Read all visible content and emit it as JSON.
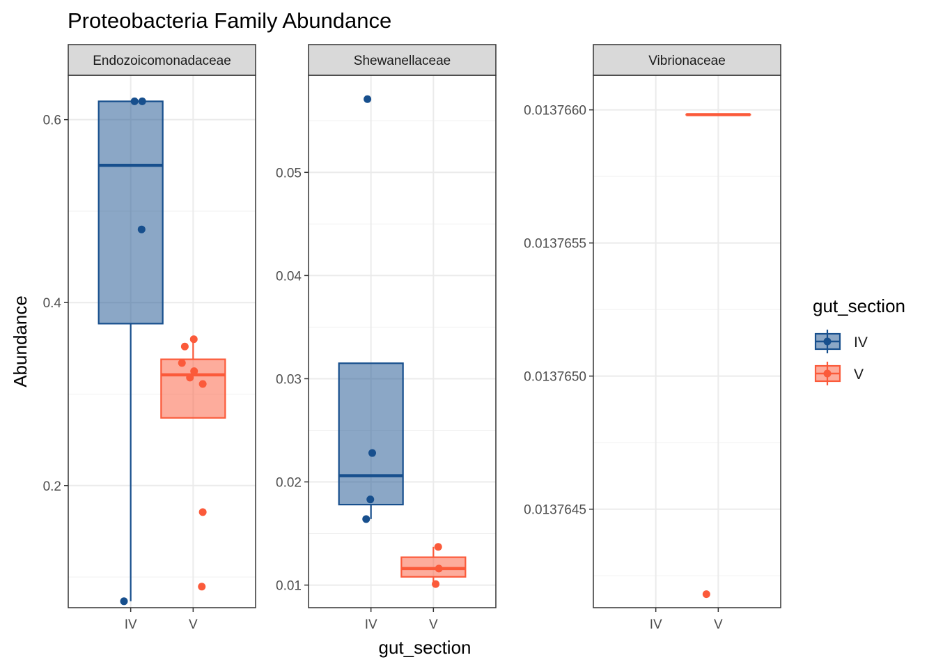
{
  "chart_data": {
    "type": "boxplot",
    "title": "Proteobacteria Family Abundance",
    "xlabel": "gut_section",
    "ylabel": "Abundance",
    "categories": [
      "IV",
      "V"
    ],
    "colors": {
      "IV": "#174f8d",
      "V": "#fb5a3a"
    },
    "grid": true,
    "legend": {
      "title": "gut_section",
      "position": "right",
      "entries": [
        {
          "label": "IV",
          "key": "IV"
        },
        {
          "label": "V",
          "key": "V"
        }
      ]
    },
    "panels": [
      {
        "label": "Endozoicomonadaceae",
        "ylim": [
          0.0665,
          0.6485
        ],
        "yticks": [
          {
            "value": 0.2,
            "label": "0.2"
          },
          {
            "value": 0.4,
            "label": "0.4"
          },
          {
            "value": 0.6,
            "label": "0.6"
          }
        ],
        "groups": [
          {
            "category": "IV",
            "box": {
              "whisker_low": 0.0735,
              "q1": 0.377,
              "median": 0.55,
              "q3": 0.62,
              "whisker_high": 0.62
            },
            "points": [
              {
                "xj": -0.21,
                "y": 0.0735
              },
              {
                "xj": 0.12,
                "y": 0.62
              },
              {
                "xj": 0.36,
                "y": 0.62
              },
              {
                "xj": 0.34,
                "y": 0.48
              }
            ]
          },
          {
            "category": "V",
            "box": {
              "whisker_low": 0.274,
              "q1": 0.274,
              "median": 0.321,
              "q3": 0.338,
              "whisker_high": 0.36
            },
            "points": [
              {
                "xj": -0.35,
                "y": 0.334
              },
              {
                "xj": -0.26,
                "y": 0.352
              },
              {
                "xj": 0.02,
                "y": 0.36
              },
              {
                "xj": -0.1,
                "y": 0.318
              },
              {
                "xj": 0.03,
                "y": 0.325
              },
              {
                "xj": 0.3,
                "y": 0.311
              },
              {
                "xj": 0.3,
                "y": 0.171
              },
              {
                "xj": 0.27,
                "y": 0.0895
              }
            ]
          }
        ]
      },
      {
        "label": "Shewanellaceae",
        "ylim": [
          0.00781,
          0.05941
        ],
        "yticks": [
          {
            "value": 0.01,
            "label": "0.01"
          },
          {
            "value": 0.02,
            "label": "0.02"
          },
          {
            "value": 0.03,
            "label": "0.03"
          },
          {
            "value": 0.04,
            "label": "0.04"
          },
          {
            "value": 0.05,
            "label": "0.05"
          }
        ],
        "groups": [
          {
            "category": "IV",
            "box": {
              "whisker_low": 0.0164,
              "q1": 0.0178,
              "median": 0.0206,
              "q3": 0.0315,
              "whisker_high": 0.0315
            },
            "points": [
              {
                "xj": -0.11,
                "y": 0.0571
              },
              {
                "xj": 0.04,
                "y": 0.0228
              },
              {
                "xj": -0.02,
                "y": 0.0183
              },
              {
                "xj": -0.15,
                "y": 0.0164
              }
            ]
          },
          {
            "category": "V",
            "box": {
              "whisker_low": 0.0103,
              "q1": 0.0108,
              "median": 0.0116,
              "q3": 0.0127,
              "whisker_high": 0.0137
            },
            "points": [
              {
                "xj": 0.15,
                "y": 0.0137
              },
              {
                "xj": 0.17,
                "y": 0.0116
              },
              {
                "xj": 0.07,
                "y": 0.0101
              }
            ]
          }
        ]
      },
      {
        "label": "Vibrionaceae",
        "ylim": [
          0.01376413,
          0.01376613
        ],
        "yticks": [
          {
            "value": 0.0137645,
            "label": "0.0137645"
          },
          {
            "value": 0.013765,
            "label": "0.0137650"
          },
          {
            "value": 0.0137655,
            "label": "0.0137655"
          },
          {
            "value": 0.013766,
            "label": "0.0137660"
          }
        ],
        "groups": [
          {
            "category": "V",
            "box": {
              "whisker_low": 0.013765982,
              "q1": 0.013765982,
              "median": 0.013765982,
              "q3": 0.013765982,
              "whisker_high": 0.013765982
            },
            "points": [
              {
                "xj": -0.37,
                "y": 0.0137641808
              }
            ]
          }
        ]
      }
    ]
  }
}
